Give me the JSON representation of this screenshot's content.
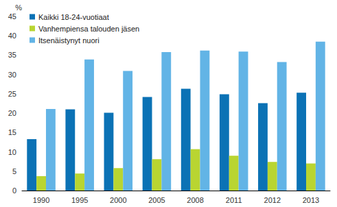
{
  "chart_data": {
    "type": "bar",
    "y_label": "%",
    "categories": [
      "1990",
      "1995",
      "2000",
      "2005",
      "2008",
      "2011",
      "2012",
      "2013"
    ],
    "series": [
      {
        "name": "Kaikki 18-24-vuotiaat",
        "color": "#0b72b5",
        "values": [
          13.3,
          21.0,
          20.1,
          24.2,
          26.3,
          24.9,
          22.6,
          25.3
        ]
      },
      {
        "name": "Vanhempiensa talouden jäsen",
        "color": "#b9d531",
        "values": [
          3.7,
          4.4,
          5.8,
          8.1,
          10.7,
          9.0,
          7.4,
          7.0
        ]
      },
      {
        "name": "Itsenäistynyt nuori",
        "color": "#62b4e6",
        "values": [
          21.1,
          33.9,
          30.9,
          35.8,
          36.2,
          35.9,
          33.2,
          38.5
        ]
      }
    ],
    "ylim": [
      0,
      45
    ],
    "yticks": [
      0,
      5,
      10,
      15,
      20,
      25,
      30,
      35,
      40,
      45
    ],
    "grid": false,
    "legend": "top-left"
  }
}
